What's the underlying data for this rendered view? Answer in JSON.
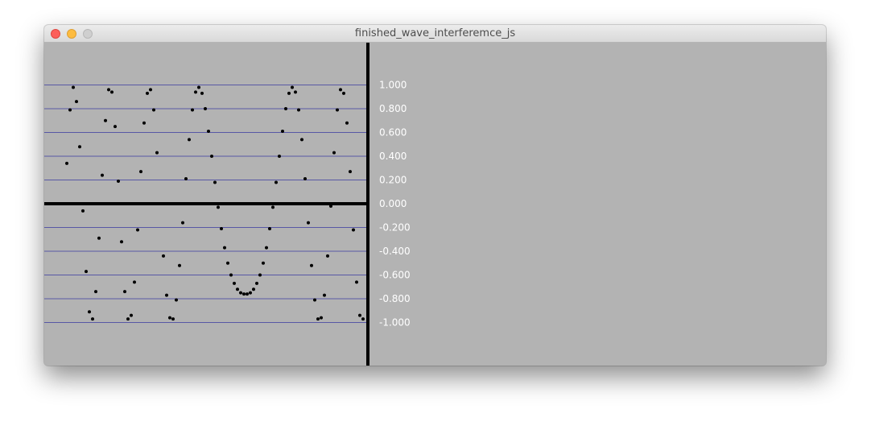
{
  "window": {
    "title": "finished_wave_interferemce_js"
  },
  "colors": {
    "canvas_bg": "#b3b3b3",
    "gridline": "#3a3aa0",
    "axis": "#000000",
    "points": "#000000",
    "labels": "#ffffff"
  },
  "chart_data": {
    "type": "scatter",
    "y_ticks": [
      "1.000",
      "0.800",
      "0.600",
      "0.400",
      "0.200",
      "0.000",
      "-0.200",
      "-0.400",
      "-0.600",
      "-0.800",
      "-1.000"
    ],
    "y_tick_values": [
      1.0,
      0.8,
      0.6,
      0.4,
      0.2,
      0.0,
      -0.2,
      -0.4,
      -0.6,
      -0.8,
      -1.0
    ],
    "ylim": [
      -1.0,
      1.0
    ],
    "grid": true,
    "points": [
      {
        "x": 28,
        "y": 0.34
      },
      {
        "x": 32,
        "y": 0.79
      },
      {
        "x": 36,
        "y": 0.98
      },
      {
        "x": 40,
        "y": 0.86
      },
      {
        "x": 44,
        "y": 0.48
      },
      {
        "x": 48,
        "y": -0.06
      },
      {
        "x": 52,
        "y": -0.57
      },
      {
        "x": 56,
        "y": -0.91
      },
      {
        "x": 60,
        "y": -0.97
      },
      {
        "x": 64,
        "y": -0.74
      },
      {
        "x": 68,
        "y": -0.29
      },
      {
        "x": 72,
        "y": 0.24
      },
      {
        "x": 76,
        "y": 0.7
      },
      {
        "x": 80,
        "y": 0.96
      },
      {
        "x": 84,
        "y": 0.94
      },
      {
        "x": 88,
        "y": 0.65
      },
      {
        "x": 92,
        "y": 0.19
      },
      {
        "x": 96,
        "y": -0.32
      },
      {
        "x": 100,
        "y": -0.74
      },
      {
        "x": 104,
        "y": -0.97
      },
      {
        "x": 108,
        "y": -0.94
      },
      {
        "x": 112,
        "y": -0.66
      },
      {
        "x": 116,
        "y": -0.22
      },
      {
        "x": 120,
        "y": 0.27
      },
      {
        "x": 124,
        "y": 0.68
      },
      {
        "x": 128,
        "y": 0.93
      },
      {
        "x": 132,
        "y": 0.96
      },
      {
        "x": 136,
        "y": 0.79
      },
      {
        "x": 140,
        "y": 0.43
      },
      {
        "x": 148,
        "y": -0.44
      },
      {
        "x": 152,
        "y": -0.77
      },
      {
        "x": 156,
        "y": -0.96
      },
      {
        "x": 160,
        "y": -0.97
      },
      {
        "x": 164,
        "y": -0.81
      },
      {
        "x": 168,
        "y": -0.52
      },
      {
        "x": 172,
        "y": -0.16
      },
      {
        "x": 176,
        "y": 0.21
      },
      {
        "x": 180,
        "y": 0.54
      },
      {
        "x": 184,
        "y": 0.79
      },
      {
        "x": 188,
        "y": 0.94
      },
      {
        "x": 192,
        "y": 0.98
      },
      {
        "x": 196,
        "y": 0.93
      },
      {
        "x": 200,
        "y": 0.8
      },
      {
        "x": 204,
        "y": 0.61
      },
      {
        "x": 208,
        "y": 0.4
      },
      {
        "x": 212,
        "y": 0.18
      },
      {
        "x": 216,
        "y": -0.03
      },
      {
        "x": 220,
        "y": -0.21
      },
      {
        "x": 224,
        "y": -0.37
      },
      {
        "x": 228,
        "y": -0.5
      },
      {
        "x": 232,
        "y": -0.6
      },
      {
        "x": 236,
        "y": -0.67
      },
      {
        "x": 240,
        "y": -0.72
      },
      {
        "x": 244,
        "y": -0.75
      },
      {
        "x": 248,
        "y": -0.76
      },
      {
        "x": 252,
        "y": -0.76
      },
      {
        "x": 256,
        "y": -0.75
      },
      {
        "x": 260,
        "y": -0.72
      },
      {
        "x": 264,
        "y": -0.67
      },
      {
        "x": 268,
        "y": -0.6
      },
      {
        "x": 272,
        "y": -0.5
      },
      {
        "x": 276,
        "y": -0.37
      },
      {
        "x": 280,
        "y": -0.21
      },
      {
        "x": 284,
        "y": -0.03
      },
      {
        "x": 288,
        "y": 0.18
      },
      {
        "x": 292,
        "y": 0.4
      },
      {
        "x": 296,
        "y": 0.61
      },
      {
        "x": 300,
        "y": 0.8
      },
      {
        "x": 304,
        "y": 0.93
      },
      {
        "x": 308,
        "y": 0.98
      },
      {
        "x": 312,
        "y": 0.94
      },
      {
        "x": 316,
        "y": 0.79
      },
      {
        "x": 320,
        "y": 0.54
      },
      {
        "x": 324,
        "y": 0.21
      },
      {
        "x": 328,
        "y": -0.16
      },
      {
        "x": 332,
        "y": -0.52
      },
      {
        "x": 336,
        "y": -0.81
      },
      {
        "x": 340,
        "y": -0.97
      },
      {
        "x": 344,
        "y": -0.96
      },
      {
        "x": 348,
        "y": -0.77
      },
      {
        "x": 352,
        "y": -0.44
      },
      {
        "x": 356,
        "y": -0.02
      },
      {
        "x": 360,
        "y": 0.43
      },
      {
        "x": 364,
        "y": 0.79
      },
      {
        "x": 368,
        "y": 0.96
      },
      {
        "x": 372,
        "y": 0.93
      },
      {
        "x": 376,
        "y": 0.68
      },
      {
        "x": 380,
        "y": 0.27
      },
      {
        "x": 384,
        "y": -0.22
      },
      {
        "x": 388,
        "y": -0.66
      },
      {
        "x": 392,
        "y": -0.94
      },
      {
        "x": 396,
        "y": -0.97
      }
    ]
  }
}
